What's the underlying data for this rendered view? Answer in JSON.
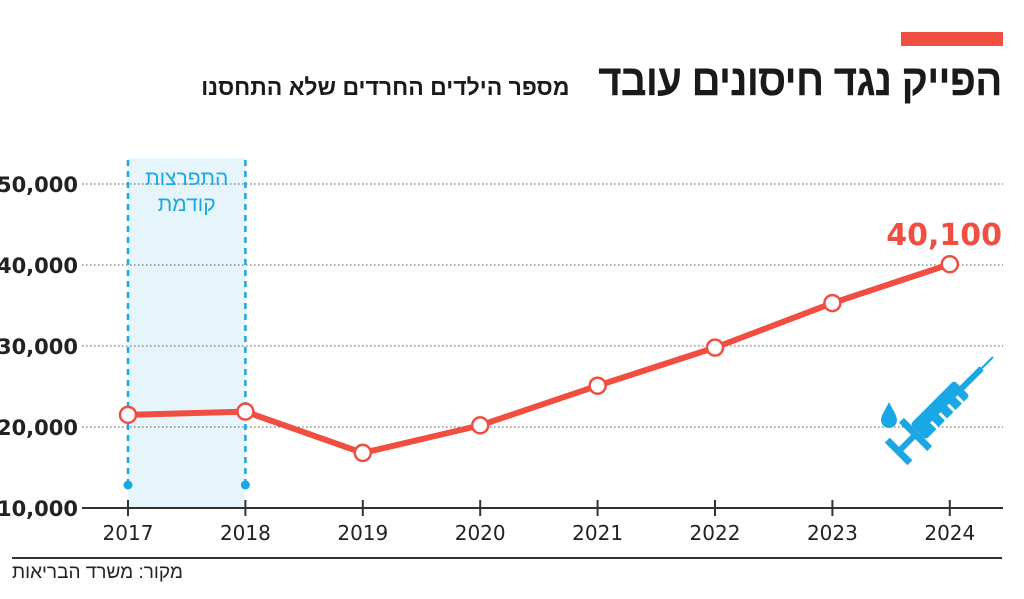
{
  "header": {
    "title": "הפייק נגד חיסונים עובד",
    "subtitle": "מספר הילדים החרדים שלא התחסנו",
    "accent_color": "#f04e40"
  },
  "source": "מקור: משרד הבריאות",
  "chart_data": {
    "type": "line",
    "title": "הפייק נגד חיסונים עובד",
    "subtitle": "מספר הילדים החרדים שלא התחסנו",
    "categories": [
      "2017",
      "2018",
      "2019",
      "2020",
      "2021",
      "2022",
      "2023",
      "2024"
    ],
    "values": [
      21500,
      21900,
      16800,
      20200,
      25100,
      29800,
      35300,
      40100
    ],
    "ylim": [
      10000,
      50000
    ],
    "yticks": [
      "10,000",
      "20,000",
      "30,000",
      "40,000",
      "50,000"
    ],
    "ytick_values": [
      10000,
      20000,
      30000,
      40000,
      50000
    ],
    "grid": "horizontal dotted",
    "series_color": "#f04e40",
    "data_labels": [
      {
        "category": "2024",
        "text": "40,100"
      }
    ],
    "annotations": [
      {
        "type": "shaded-range",
        "from": "2017",
        "to": "2018",
        "label_line1": "התפרצות",
        "label_line2": "קודמת",
        "color": "#1aa7e6"
      }
    ],
    "icon": "syringe-icon"
  }
}
